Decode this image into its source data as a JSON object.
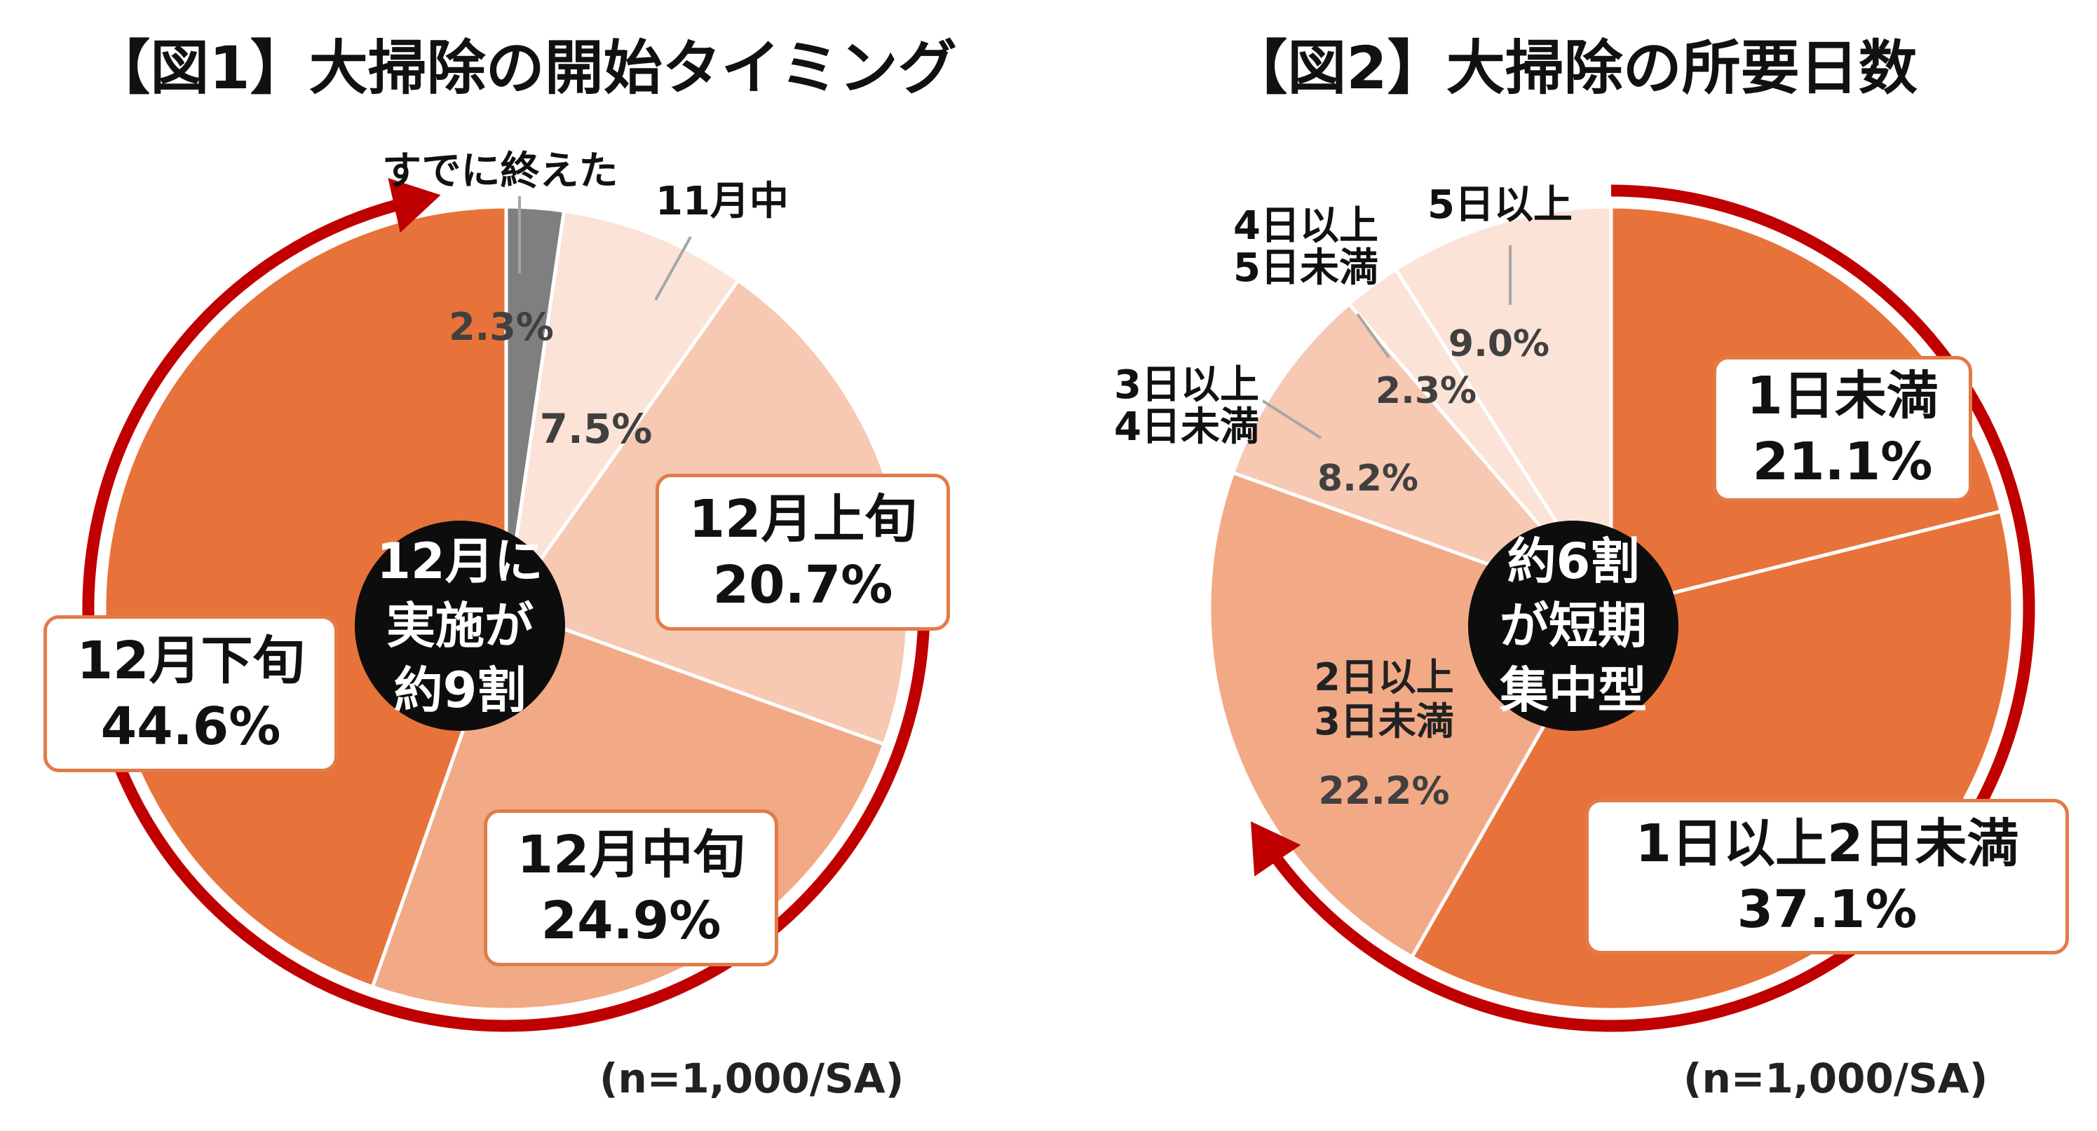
{
  "colors": {
    "dark_orange": "#e7733a",
    "mid_orange": "#f2aa86",
    "light_orange": "#f7c8b2",
    "pale_orange": "#fbe3d8",
    "gray": "#7f7f7f",
    "arrow_red": "#c00000",
    "center_black": "#0d0d0d"
  },
  "figure1": {
    "title": "【図1】大掃除の開始タイミング",
    "center_text": [
      "12月に",
      "実施が",
      "約9割"
    ],
    "note": "(n=1,000/SA)",
    "labels": {
      "s0": "すでに終えた",
      "s1": "11月中",
      "s2_name": "12月上旬",
      "s3_name": "12月中旬",
      "s4_name": "12月下旬"
    },
    "value_text": {
      "s0": "2.3%",
      "s1": "7.5%",
      "s2": "20.7%",
      "s3": "24.9%",
      "s4": "44.6%"
    }
  },
  "figure2": {
    "title": "【図2】大掃除の所要日数",
    "center_text": [
      "約6割",
      "が短期",
      "集中型"
    ],
    "note": "(n=1,000/SA)",
    "labels": {
      "s0_name": "1日未満",
      "s1_name": "1日以上2日未満",
      "s2_l1": "2日以上",
      "s2_l2": "3日未満",
      "s3_l1": "3日以上",
      "s3_l2": "4日未満",
      "s4_l1": "4日以上",
      "s4_l2": "5日未満",
      "s5": "5日以上"
    },
    "value_text": {
      "s0": "21.1%",
      "s1": "37.1%",
      "s2": "22.2%",
      "s3": "8.2%",
      "s4": "2.3%",
      "s5": "9.0%"
    }
  },
  "chart_data": [
    {
      "type": "pie",
      "title": "【図1】大掃除の開始タイミング",
      "categories": [
        "すでに終えた",
        "11月中",
        "12月上旬",
        "12月中旬",
        "12月下旬"
      ],
      "values": [
        2.3,
        7.5,
        20.7,
        24.9,
        44.6
      ],
      "colors": [
        "#7f7f7f",
        "#fbe3d8",
        "#f7c8b2",
        "#f2aa86",
        "#e7733a"
      ],
      "start": "12 o'clock, clockwise",
      "annotation": "12月に実施が約9割"
    },
    {
      "type": "pie",
      "title": "【図2】大掃除の所要日数",
      "categories": [
        "1日未満",
        "1日以上2日未満",
        "2日以上3日未満",
        "3日以上4日未満",
        "4日以上5日未満",
        "5日以上"
      ],
      "values": [
        21.1,
        37.1,
        22.2,
        8.2,
        2.3,
        9.0
      ],
      "colors": [
        "#e7733a",
        "#e7733a",
        "#f2aa86",
        "#f7c8b2",
        "#fbe3d8",
        "#fbe3d8"
      ],
      "start": "12 o'clock, clockwise",
      "annotation": "約6割が短期集中型"
    }
  ]
}
